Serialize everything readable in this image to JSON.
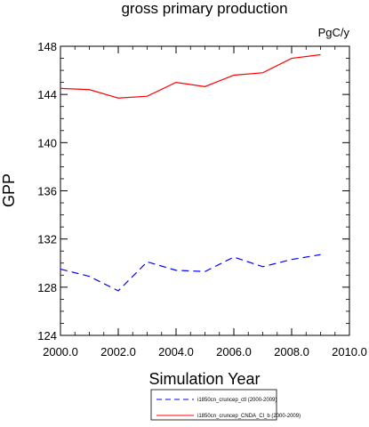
{
  "chart_data": {
    "type": "line",
    "title": "gross primary production",
    "units": "PgC/y",
    "xlabel": "Simulation Year",
    "ylabel": "GPP",
    "xlim": [
      2000,
      2010
    ],
    "ylim": [
      124,
      148
    ],
    "xticks": [
      2000,
      2002,
      2004,
      2006,
      2008,
      2010
    ],
    "xtick_labels": [
      "2000.0",
      "2002.0",
      "2004.0",
      "2006.0",
      "2008.0",
      "2010.0"
    ],
    "yticks": [
      124,
      128,
      132,
      136,
      140,
      144,
      148
    ],
    "ytick_labels": [
      "124",
      "128",
      "132",
      "136",
      "140",
      "144",
      "148"
    ],
    "grid": false,
    "legend_position": "bottom",
    "x": [
      2000,
      2001,
      2002,
      2003,
      2004,
      2005,
      2006,
      2007,
      2008,
      2009
    ],
    "series": [
      {
        "name": "i1850cn_cruncep_ctl (2000-2009)",
        "color": "#0000ff",
        "dash": "dashed",
        "values": [
          129.5,
          128.9,
          127.7,
          130.1,
          129.4,
          129.3,
          130.5,
          129.7,
          130.3,
          130.7
        ]
      },
      {
        "name": "i1850cn_cruncep_CNDA_Cl_b (2000-2009)",
        "color": "#ff0000",
        "dash": "solid",
        "values": [
          144.5,
          144.4,
          143.7,
          143.85,
          145.0,
          144.65,
          145.6,
          145.8,
          147.0,
          147.3
        ]
      }
    ]
  }
}
